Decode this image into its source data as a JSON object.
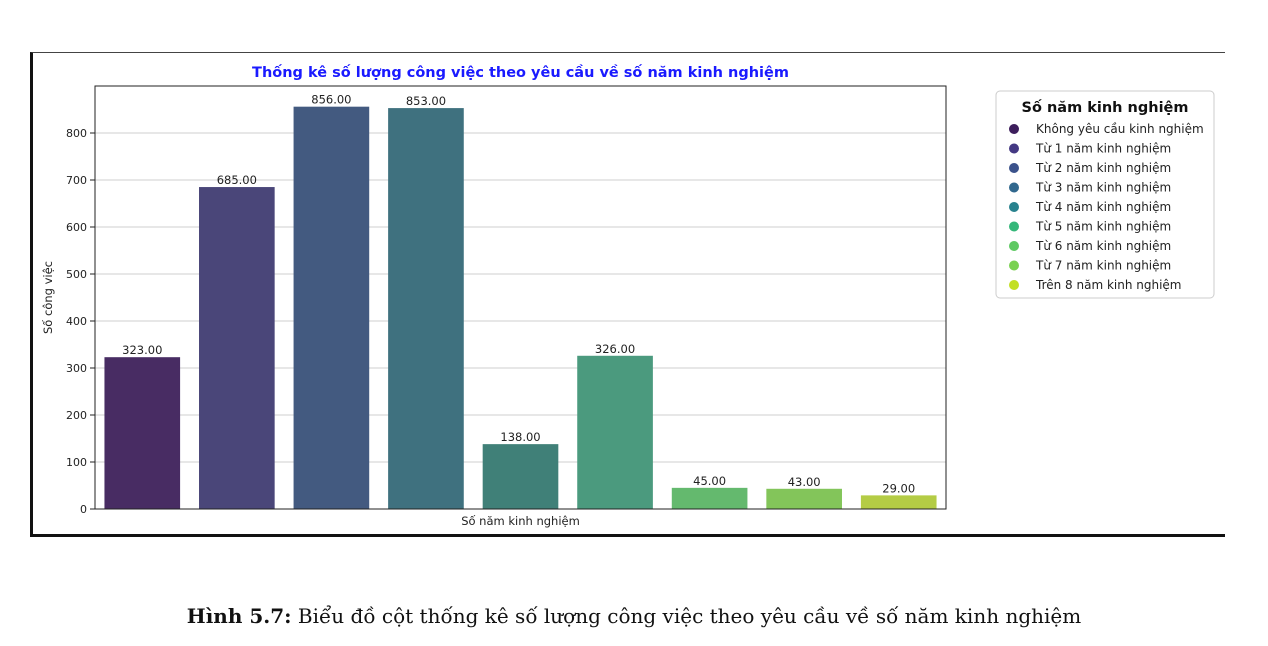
{
  "chart_data": {
    "type": "bar",
    "title": "Thống kê số lượng công việc theo yêu cầu về số năm kinh nghiệm",
    "xlabel": "Số năm kinh nghiệm",
    "ylabel": "Số công việc",
    "ylim": [
      0,
      900
    ],
    "yticks": [
      "0",
      "100",
      "200",
      "300",
      "400",
      "500",
      "600",
      "700",
      "800"
    ],
    "categories": [
      "Không yêu cầu kinh nghiệm",
      "Từ 1 năm kinh nghiệm",
      "Từ 2 năm kinh nghiệm",
      "Từ 3 năm kinh nghiệm",
      "Từ 4 năm kinh nghiệm",
      "Từ 5 năm kinh nghiệm",
      "Từ 6 năm kinh nghiệm",
      "Từ 7 năm kinh nghiệm",
      "Trên 8 năm kinh nghiệm"
    ],
    "values": [
      323,
      685,
      856,
      853,
      138,
      326,
      45,
      43,
      29
    ],
    "value_labels": [
      "323.00",
      "685.00",
      "856.00",
      "853.00",
      "138.00",
      "326.00",
      "45.00",
      "43.00",
      "29.00"
    ],
    "colors": [
      "#482c63",
      "#4a4679",
      "#435a80",
      "#3f717f",
      "#408078",
      "#4b9a7e",
      "#64b96e",
      "#83c55a",
      "#b4cc45"
    ],
    "grid": "horizontal",
    "legend": {
      "title": "Số năm kinh nghiệm",
      "placement": "right",
      "colors": [
        "#3d1e5c",
        "#443983",
        "#3b528b",
        "#31688e",
        "#28828e",
        "#35b779",
        "#5ec962",
        "#7ad151",
        "#c2df23"
      ]
    }
  },
  "caption": {
    "label": "Hình 5.7:",
    "text": " Biểu đồ cột thống kê số lượng công việc theo yêu cầu về số năm kinh nghiệm"
  }
}
